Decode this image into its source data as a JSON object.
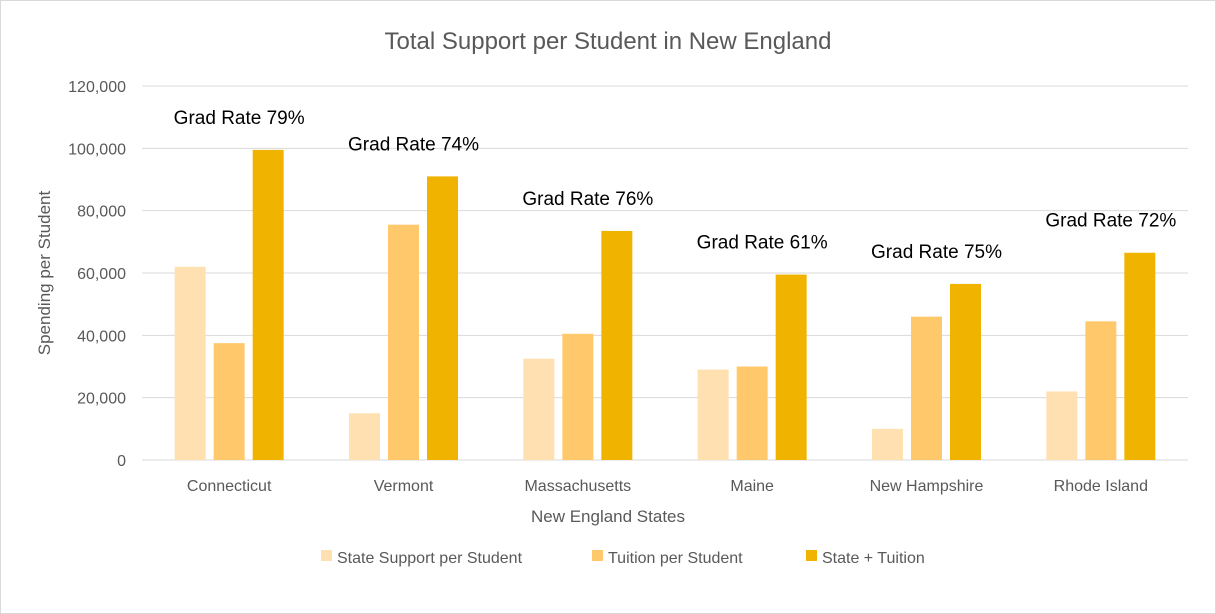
{
  "chart_data": {
    "type": "bar",
    "title": "Total Support per Student in New England",
    "xlabel": "New England States",
    "ylabel": "Spending per Student",
    "ylim": [
      0,
      120000
    ],
    "yticks": [
      "0",
      "20,000",
      "40,000",
      "60,000",
      "80,000",
      "100,000",
      "120,000"
    ],
    "ytick_values": [
      0,
      20000,
      40000,
      60000,
      80000,
      100000,
      120000
    ],
    "grid": true,
    "legend_position": "bottom",
    "categories": [
      "Connecticut",
      "Vermont",
      "Massachusetts",
      "Maine",
      "New Hampshire",
      "Rhode Island"
    ],
    "series": [
      {
        "name": "State Support per Student",
        "color": "#ffe0b0",
        "values": [
          62000,
          15000,
          32500,
          29000,
          10000,
          22000
        ]
      },
      {
        "name": "Tuition per Student",
        "color": "#ffc96b",
        "values": [
          37500,
          75500,
          40500,
          30000,
          46000,
          44500
        ]
      },
      {
        "name": "State + Tuition",
        "color": "#f0b400",
        "values": [
          99500,
          91000,
          73500,
          59500,
          56500,
          66500
        ]
      }
    ],
    "annotations": [
      "Grad Rate 79%",
      "Grad Rate 74%",
      "Grad Rate 76%",
      "Grad Rate 61%",
      "Grad Rate 75%",
      "Grad Rate 72%"
    ]
  }
}
